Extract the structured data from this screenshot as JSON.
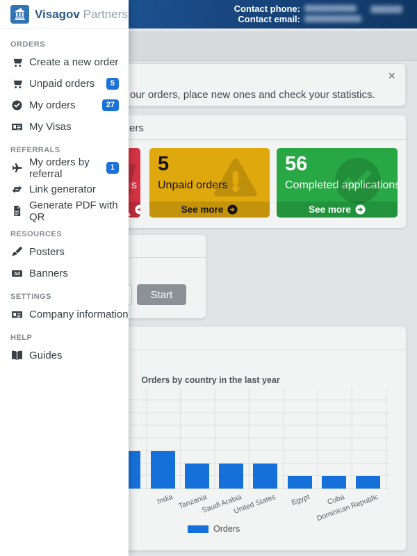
{
  "colors": {
    "header_blue": "#1a4a85",
    "badge_blue": "#1a72da",
    "bar_blue": "#1670d9",
    "card_red": "#d53343",
    "card_yellow": "#dfa80d",
    "card_green": "#28a745",
    "button_gray": "#8b9196"
  },
  "topbar": {
    "contact_phone_label": "Contact phone:",
    "contact_email_label": "Contact email:",
    "phone_value_blurred": true,
    "email_value_blurred": true,
    "user_name_blurred": true
  },
  "brand": {
    "name_primary": "Visagov",
    "name_secondary": "Partners",
    "logo_icon": "government-building"
  },
  "sidebar": {
    "sections": [
      {
        "title": "ORDERS",
        "items": [
          {
            "label": "Create a new order",
            "icon": "cart"
          },
          {
            "label": "Unpaid orders",
            "icon": "cart",
            "badge": "5"
          },
          {
            "label": "My orders",
            "icon": "check-circle",
            "badge": "27"
          },
          {
            "label": "My Visas",
            "icon": "id-card"
          }
        ]
      },
      {
        "title": "REFERRALS",
        "items": [
          {
            "label": "My orders by referral",
            "icon": "plane",
            "badge": "1"
          },
          {
            "label": "Link generator",
            "icon": "retweet"
          },
          {
            "label": "Generate PDF with QR",
            "icon": "file-pdf"
          }
        ]
      },
      {
        "title": "RESOURCES",
        "items": [
          {
            "label": "Posters",
            "icon": "paint-brush"
          },
          {
            "label": "Banners",
            "icon": "ad"
          }
        ]
      },
      {
        "title": "SETTINGS",
        "items": [
          {
            "label": "Company information",
            "icon": "id-card"
          }
        ]
      },
      {
        "title": "HELP",
        "items": [
          {
            "label": "Guides",
            "icon": "book"
          }
        ]
      }
    ]
  },
  "alert": {
    "visible_text_fragment": "our orders, place new ones and check your statistics.",
    "close_glyph": "×"
  },
  "orders_panel": {
    "title_visible_fragment": "ers",
    "cards": [
      {
        "id": "red-card",
        "bg": "#d53343",
        "text_color": "#ffffff",
        "visible_text_fragment": "s",
        "icon": "cart",
        "see_more": "See more"
      },
      {
        "id": "unpaid-orders-card",
        "bg": "#dfa80d",
        "text_color": "#141414",
        "value": "5",
        "label": "Unpaid orders",
        "icon": "warning-triangle",
        "see_more": "See more"
      },
      {
        "id": "completed-applications-card",
        "bg": "#28a745",
        "text_color": "#ffffff",
        "value": "56",
        "label": "Completed applications",
        "icon": "check-circle",
        "see_more": "See more"
      }
    ]
  },
  "start_panel": {
    "button_label": "Start"
  },
  "chart_data": {
    "type": "bar",
    "title": "Orders by country in the last year",
    "categories": [
      "",
      "India",
      "Tanzania",
      "Saudi Arabia",
      "United States",
      "Egypt",
      "Cuba",
      "Dominican Republic"
    ],
    "first_bar_label_hidden_behind_menu": true,
    "values_gridline_units": [
      3,
      3,
      2,
      2,
      2,
      1,
      1,
      1
    ],
    "y_axis_labels_visible": false,
    "grid": true,
    "bar_color": "#1670d9",
    "legend": {
      "label": "Orders",
      "position": "bottom"
    }
  }
}
